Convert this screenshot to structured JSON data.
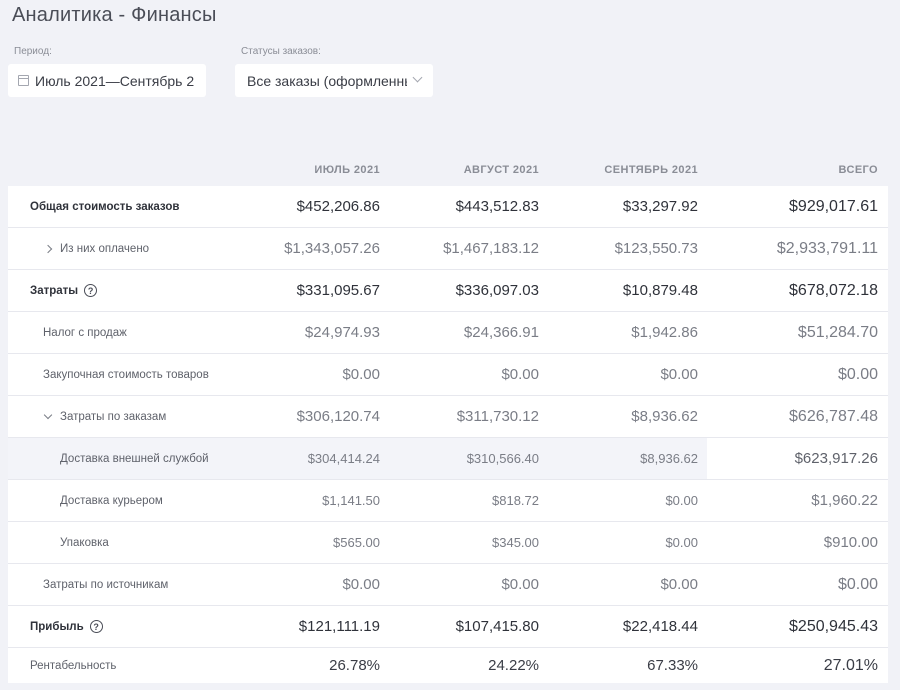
{
  "page_title": "Аналитика - Финансы",
  "filters": {
    "period_label": "Период:",
    "period_value": "Июль 2021—Сентябрь 2",
    "status_label": "Статусы заказов:",
    "status_value": "Все заказы (оформленные"
  },
  "table": {
    "headers": [
      "ИЮЛЬ 2021",
      "АВГУСТ 2021",
      "СЕНТЯБРЬ 2021",
      "ВСЕГО"
    ],
    "rows": [
      {
        "label": "Общая стоимость заказов",
        "values": [
          "$452,206.86",
          "$443,512.83",
          "$33,297.92",
          "$929,017.61"
        ]
      },
      {
        "label": "Из них оплачено",
        "values": [
          "$1,343,057.26",
          "$1,467,183.12",
          "$123,550.73",
          "$2,933,791.11"
        ]
      },
      {
        "label": "Затраты",
        "values": [
          "$331,095.67",
          "$336,097.03",
          "$10,879.48",
          "$678,072.18"
        ]
      },
      {
        "label": "Налог с продаж",
        "values": [
          "$24,974.93",
          "$24,366.91",
          "$1,942.86",
          "$51,284.70"
        ]
      },
      {
        "label": "Закупочная стоимость товаров",
        "values": [
          "$0.00",
          "$0.00",
          "$0.00",
          "$0.00"
        ]
      },
      {
        "label": "Затраты по заказам",
        "values": [
          "$306,120.74",
          "$311,730.12",
          "$8,936.62",
          "$626,787.48"
        ]
      },
      {
        "label": "Доставка внешней службой",
        "values": [
          "$304,414.24",
          "$310,566.40",
          "$8,936.62",
          "$623,917.26"
        ]
      },
      {
        "label": "Доставка курьером",
        "values": [
          "$1,141.50",
          "$818.72",
          "$0.00",
          "$1,960.22"
        ]
      },
      {
        "label": "Упаковка",
        "values": [
          "$565.00",
          "$345.00",
          "$0.00",
          "$910.00"
        ]
      },
      {
        "label": "Затраты по источникам",
        "values": [
          "$0.00",
          "$0.00",
          "$0.00",
          "$0.00"
        ]
      },
      {
        "label": "Прибыль",
        "values": [
          "$121,111.19",
          "$107,415.80",
          "$22,418.44",
          "$250,945.43"
        ]
      },
      {
        "label": "Рентабельность",
        "values": [
          "26.78%",
          "24.22%",
          "67.33%",
          "27.01%"
        ]
      }
    ]
  }
}
